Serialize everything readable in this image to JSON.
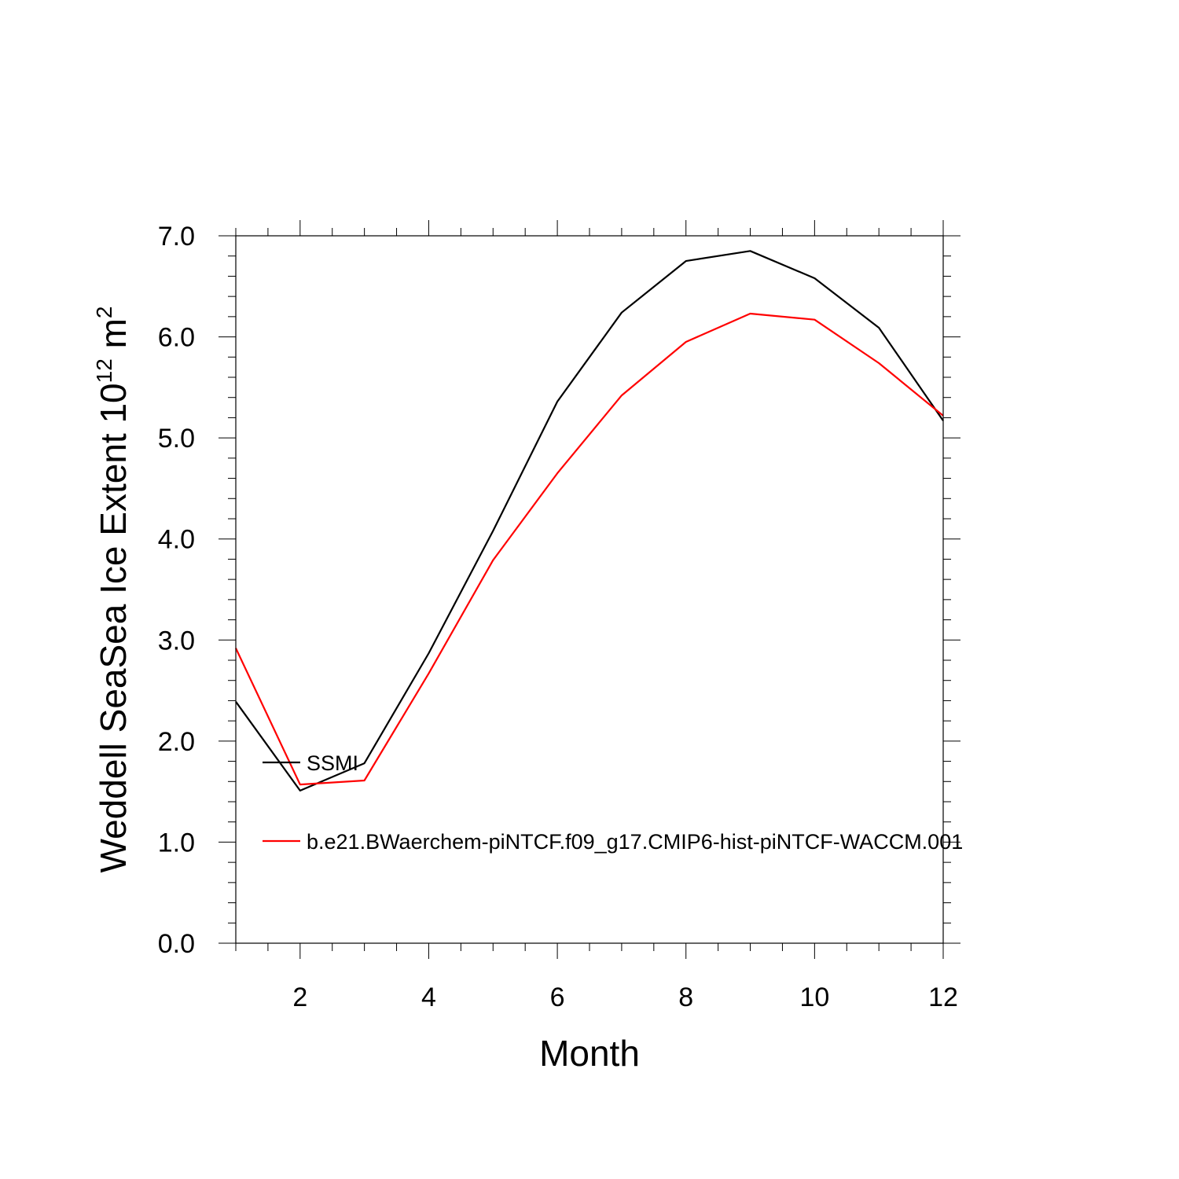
{
  "chart_data": {
    "type": "line",
    "xlabel": "Month",
    "ylabel_parts": [
      "Weddell SeaSea Ice Extent 10",
      "12",
      " m",
      "2"
    ],
    "xlim": [
      1,
      12
    ],
    "ylim": [
      0,
      7
    ],
    "x_ticks": [
      2,
      4,
      6,
      8,
      10,
      12
    ],
    "x_tick_labels": [
      "2",
      "4",
      "6",
      "8",
      "10",
      "12"
    ],
    "y_ticks": [
      0,
      1,
      2,
      3,
      4,
      5,
      6,
      7
    ],
    "y_tick_labels": [
      "0.0",
      "1.0",
      "2.0",
      "3.0",
      "4.0",
      "5.0",
      "6.0",
      "7.0"
    ],
    "grid": false,
    "legend_position": "inside-lower-left",
    "x": [
      1,
      2,
      3,
      4,
      5,
      6,
      7,
      8,
      9,
      10,
      11,
      12
    ],
    "series": [
      {
        "name": "SSMI",
        "color": "#000000",
        "values": [
          2.39,
          1.51,
          1.78,
          2.87,
          4.08,
          5.36,
          6.24,
          6.75,
          6.85,
          6.58,
          6.09,
          5.17
        ]
      },
      {
        "name": "b.e21.BWaerchem-piNTCF.f09_g17.CMIP6-hist-piNTCF-WACCM.001",
        "color": "#ff0000",
        "values": [
          2.92,
          1.57,
          1.61,
          2.67,
          3.79,
          4.65,
          5.42,
          5.95,
          6.23,
          6.17,
          5.74,
          5.22
        ]
      }
    ]
  }
}
